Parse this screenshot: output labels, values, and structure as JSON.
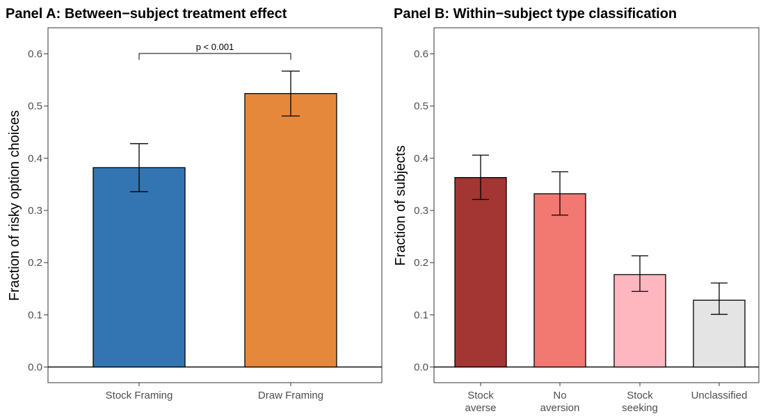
{
  "chart_data": [
    {
      "type": "bar",
      "title": "Panel A: Between−subject treatment effect",
      "xlabel": "",
      "ylabel": "Fraction of risky option choices",
      "categories": [
        "Stock Framing",
        "Draw Framing"
      ],
      "values": [
        0.382,
        0.524
      ],
      "error_low": [
        0.336,
        0.481
      ],
      "error_high": [
        0.428,
        0.567
      ],
      "colors": [
        "#3375b3",
        "#e6883c"
      ],
      "ylim": [
        -0.03,
        0.65
      ],
      "yticks": [
        "0.0",
        "0.1",
        "0.2",
        "0.3",
        "0.4",
        "0.5",
        "0.6"
      ],
      "annotation": "p < 0.001",
      "grid": false
    },
    {
      "type": "bar",
      "title": "Panel B: Within−subject type classification",
      "xlabel": "",
      "ylabel": "Fraction of subjects",
      "categories": [
        [
          "Stock",
          "averse"
        ],
        [
          "No",
          "aversion"
        ],
        [
          "Stock",
          "seeking"
        ],
        [
          "Unclassified"
        ]
      ],
      "values": [
        0.363,
        0.332,
        0.177,
        0.128
      ],
      "error_low": [
        0.321,
        0.291,
        0.145,
        0.101
      ],
      "error_high": [
        0.406,
        0.374,
        0.213,
        0.161
      ],
      "colors": [
        "#a33533",
        "#f27872",
        "#ffb7bf",
        "#e4e4e4"
      ],
      "ylim": [
        -0.03,
        0.65
      ],
      "yticks": [
        "0.0",
        "0.1",
        "0.2",
        "0.3",
        "0.4",
        "0.5",
        "0.6"
      ],
      "grid": false
    }
  ]
}
